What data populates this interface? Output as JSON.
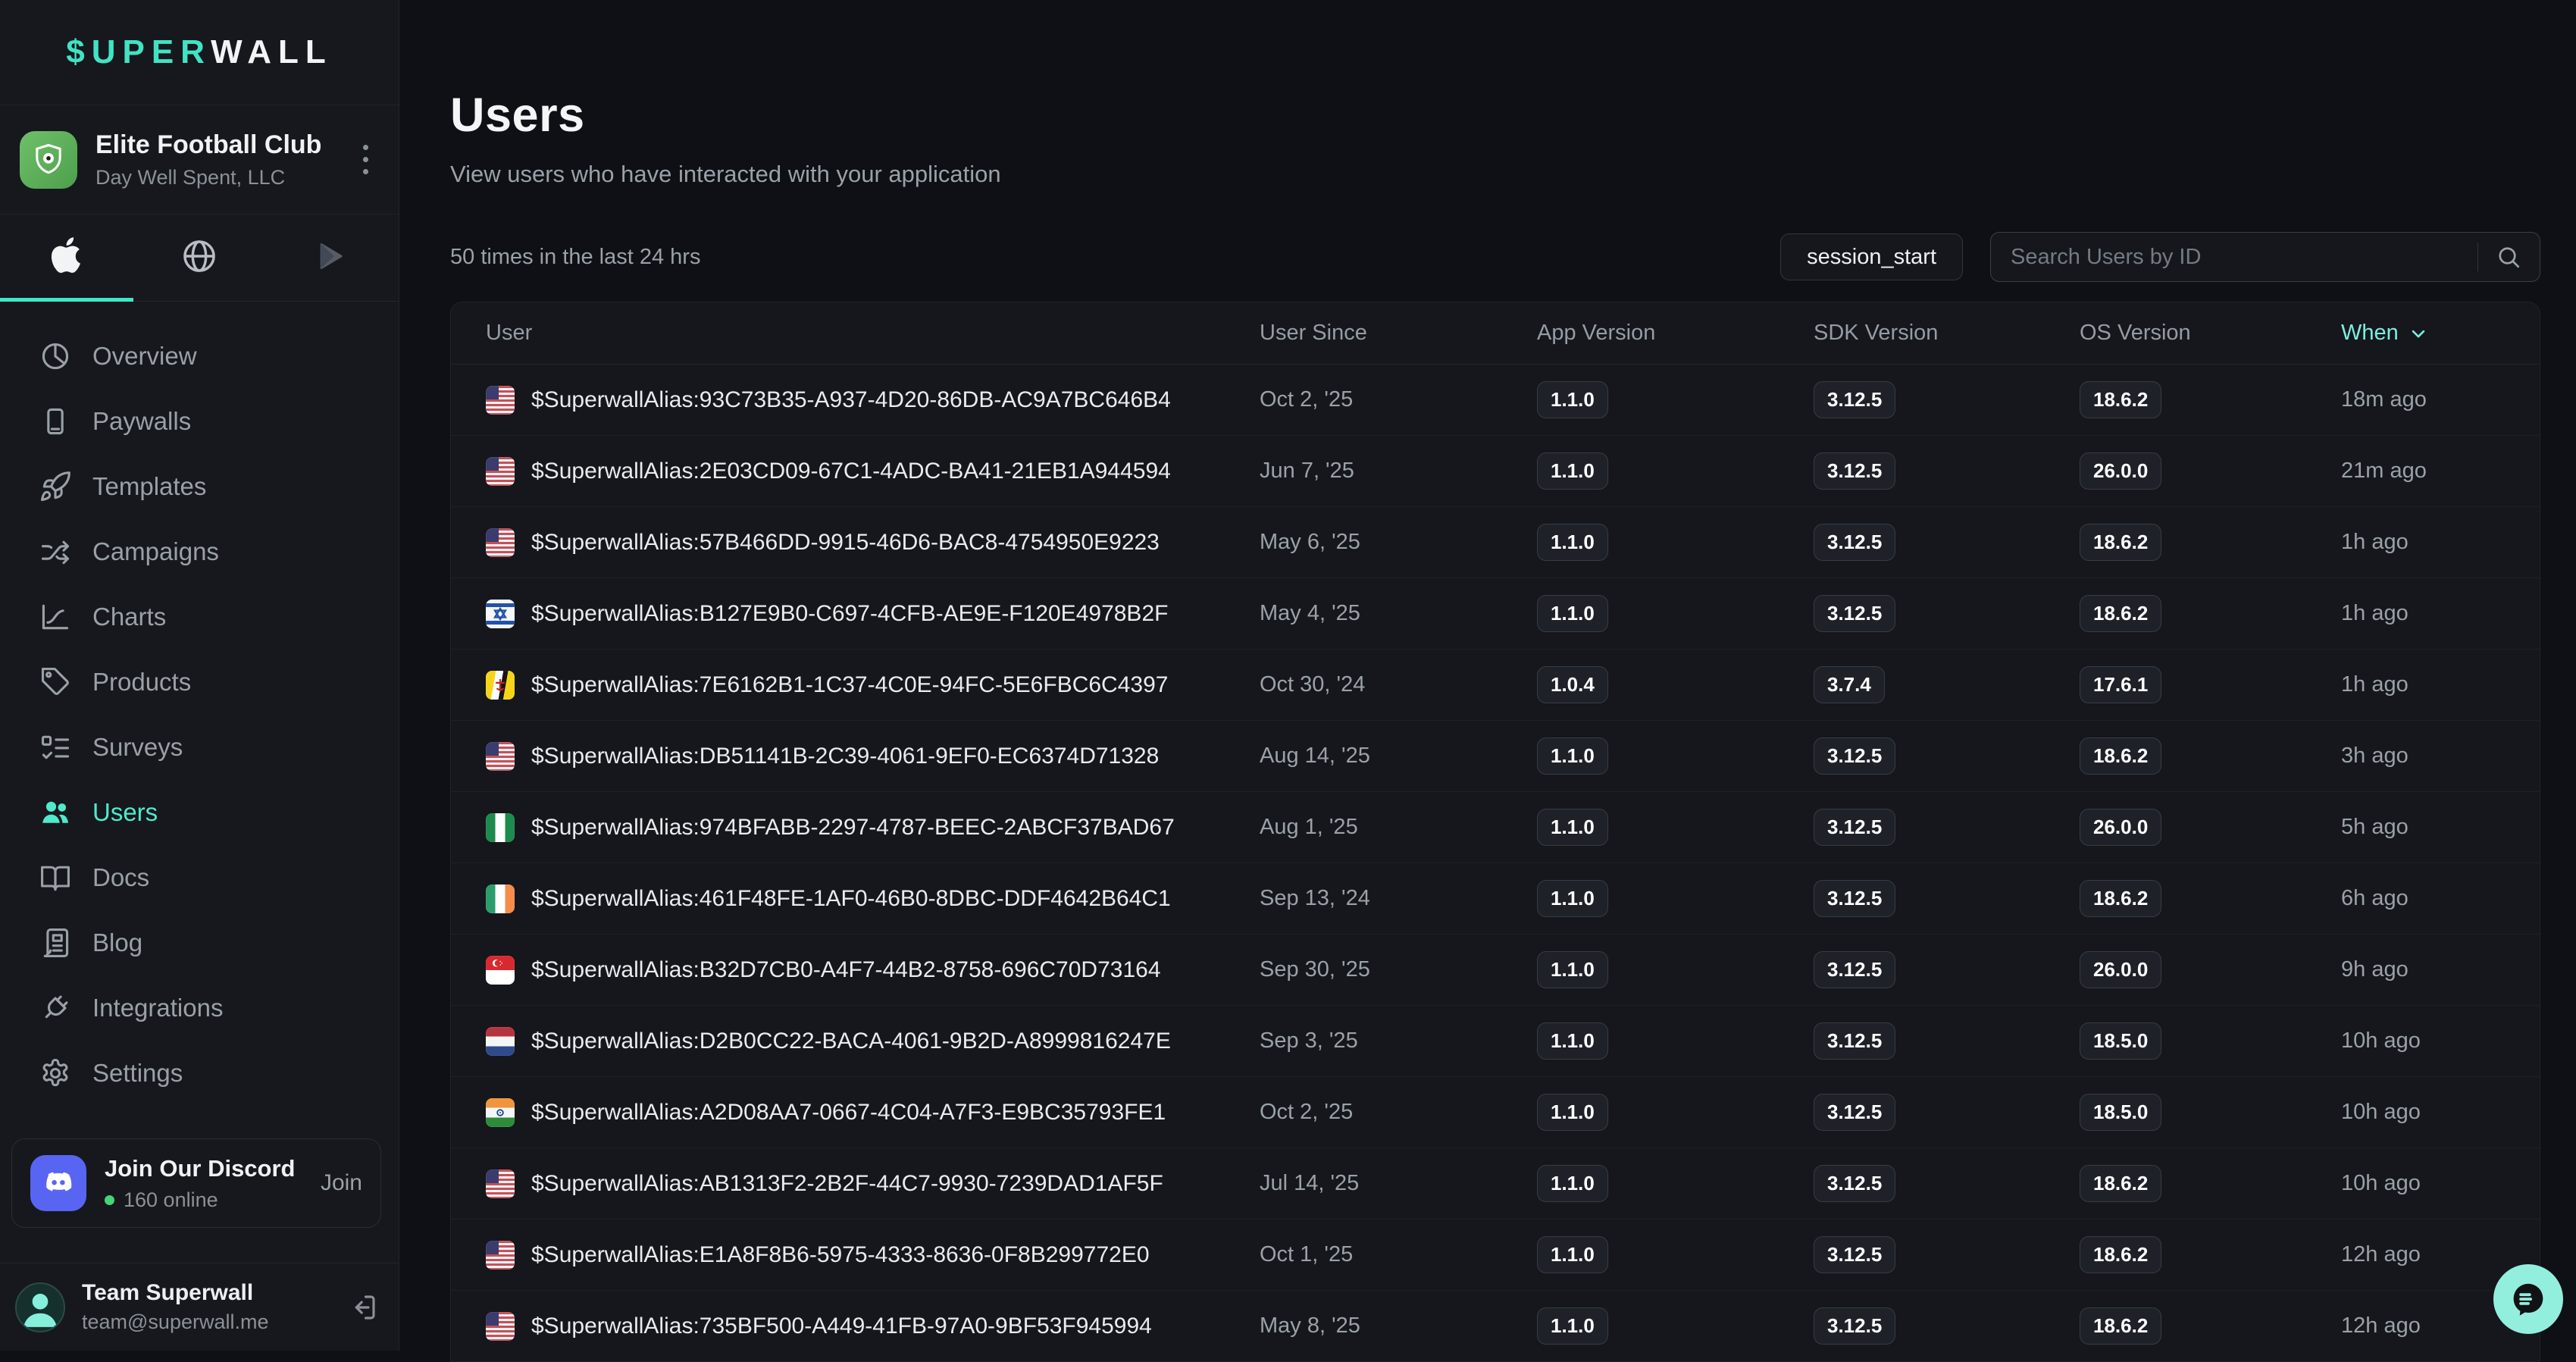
{
  "brand": {
    "logo_accent": "$UPER",
    "logo_rest": "WALL"
  },
  "workspace": {
    "name": "Elite Football Club",
    "company": "Day Well Spent, LLC",
    "avatar_icon": "soccer-club-badge"
  },
  "platform_tabs": [
    {
      "icon": "apple",
      "active": true
    },
    {
      "icon": "globe",
      "active": false
    },
    {
      "icon": "google-play",
      "active": false
    }
  ],
  "sidebar": {
    "items": [
      {
        "icon": "overview",
        "label": "Overview",
        "active": false
      },
      {
        "icon": "paywalls",
        "label": "Paywalls",
        "active": false
      },
      {
        "icon": "templates",
        "label": "Templates",
        "active": false
      },
      {
        "icon": "campaigns",
        "label": "Campaigns",
        "active": false
      },
      {
        "icon": "charts",
        "label": "Charts",
        "active": false
      },
      {
        "icon": "products",
        "label": "Products",
        "active": false
      },
      {
        "icon": "surveys",
        "label": "Surveys",
        "active": false
      },
      {
        "icon": "users",
        "label": "Users",
        "active": true
      },
      {
        "icon": "docs",
        "label": "Docs",
        "active": false
      },
      {
        "icon": "blog",
        "label": "Blog",
        "active": false
      },
      {
        "icon": "integrations",
        "label": "Integrations",
        "active": false
      },
      {
        "icon": "settings",
        "label": "Settings",
        "active": false
      }
    ]
  },
  "discord": {
    "title": "Join Our Discord",
    "online_count": "160 online",
    "action_label": "Join"
  },
  "account": {
    "name": "Team Superwall",
    "email": "team@superwall.me"
  },
  "header": {
    "title": "Users",
    "subtitle": "View users who have interacted with your application"
  },
  "toolbar": {
    "stats_text": "50 times in the last 24 hrs",
    "event_filter_label": "session_start",
    "search_placeholder": "Search Users by ID"
  },
  "table": {
    "columns": [
      "User",
      "User Since",
      "App Version",
      "SDK Version",
      "OS Version",
      "When"
    ],
    "sorted_by": "When",
    "rows": [
      {
        "flag": "us",
        "alias": "$SuperwallAlias:93C73B35-A937-4D20-86DB-AC9A7BC646B4",
        "since": "Oct 2, '25",
        "app": "1.1.0",
        "sdk": "3.12.5",
        "os": "18.6.2",
        "when": "18m ago"
      },
      {
        "flag": "us",
        "alias": "$SuperwallAlias:2E03CD09-67C1-4ADC-BA41-21EB1A944594",
        "since": "Jun 7, '25",
        "app": "1.1.0",
        "sdk": "3.12.5",
        "os": "26.0.0",
        "when": "21m ago"
      },
      {
        "flag": "us",
        "alias": "$SuperwallAlias:57B466DD-9915-46D6-BAC8-4754950E9223",
        "since": "May 6, '25",
        "app": "1.1.0",
        "sdk": "3.12.5",
        "os": "18.6.2",
        "when": "1h ago"
      },
      {
        "flag": "il",
        "alias": "$SuperwallAlias:B127E9B0-C697-4CFB-AE9E-F120E4978B2F",
        "since": "May 4, '25",
        "app": "1.1.0",
        "sdk": "3.12.5",
        "os": "18.6.2",
        "when": "1h ago"
      },
      {
        "flag": "bn",
        "alias": "$SuperwallAlias:7E6162B1-1C37-4C0E-94FC-5E6FBC6C4397",
        "since": "Oct 30, '24",
        "app": "1.0.4",
        "sdk": "3.7.4",
        "os": "17.6.1",
        "when": "1h ago"
      },
      {
        "flag": "us",
        "alias": "$SuperwallAlias:DB51141B-2C39-4061-9EF0-EC6374D71328",
        "since": "Aug 14, '25",
        "app": "1.1.0",
        "sdk": "3.12.5",
        "os": "18.6.2",
        "when": "3h ago"
      },
      {
        "flag": "ng",
        "alias": "$SuperwallAlias:974BFABB-2297-4787-BEEC-2ABCF37BAD67",
        "since": "Aug 1, '25",
        "app": "1.1.0",
        "sdk": "3.12.5",
        "os": "26.0.0",
        "when": "5h ago"
      },
      {
        "flag": "ie",
        "alias": "$SuperwallAlias:461F48FE-1AF0-46B0-8DBC-DDF4642B64C1",
        "since": "Sep 13, '24",
        "app": "1.1.0",
        "sdk": "3.12.5",
        "os": "18.6.2",
        "when": "6h ago"
      },
      {
        "flag": "sg",
        "alias": "$SuperwallAlias:B32D7CB0-A4F7-44B2-8758-696C70D73164",
        "since": "Sep 30, '25",
        "app": "1.1.0",
        "sdk": "3.12.5",
        "os": "26.0.0",
        "when": "9h ago"
      },
      {
        "flag": "nl",
        "alias": "$SuperwallAlias:D2B0CC22-BACA-4061-9B2D-A8999816247E",
        "since": "Sep 3, '25",
        "app": "1.1.0",
        "sdk": "3.12.5",
        "os": "18.5.0",
        "when": "10h ago"
      },
      {
        "flag": "in",
        "alias": "$SuperwallAlias:A2D08AA7-0667-4C04-A7F3-E9BC35793FE1",
        "since": "Oct 2, '25",
        "app": "1.1.0",
        "sdk": "3.12.5",
        "os": "18.5.0",
        "when": "10h ago"
      },
      {
        "flag": "us",
        "alias": "$SuperwallAlias:AB1313F2-2B2F-44C7-9930-7239DAD1AF5F",
        "since": "Jul 14, '25",
        "app": "1.1.0",
        "sdk": "3.12.5",
        "os": "18.6.2",
        "when": "10h ago"
      },
      {
        "flag": "us",
        "alias": "$SuperwallAlias:E1A8F8B6-5975-4333-8636-0F8B299772E0",
        "since": "Oct 1, '25",
        "app": "1.1.0",
        "sdk": "3.12.5",
        "os": "18.6.2",
        "when": "12h ago"
      },
      {
        "flag": "us",
        "alias": "$SuperwallAlias:735BF500-A449-41FB-97A0-9BF53F945994",
        "since": "May 8, '25",
        "app": "1.1.0",
        "sdk": "3.12.5",
        "os": "18.6.2",
        "when": "12h ago"
      }
    ]
  },
  "colors": {
    "accent_teal": "#41e3c4",
    "when_teal": "#7deee0",
    "discord_blurple": "#5865f2",
    "online_green": "#43d675",
    "fab_teal": "#93efdd",
    "page_bg": "#0e1015",
    "sidebar_bg": "#16181d"
  }
}
